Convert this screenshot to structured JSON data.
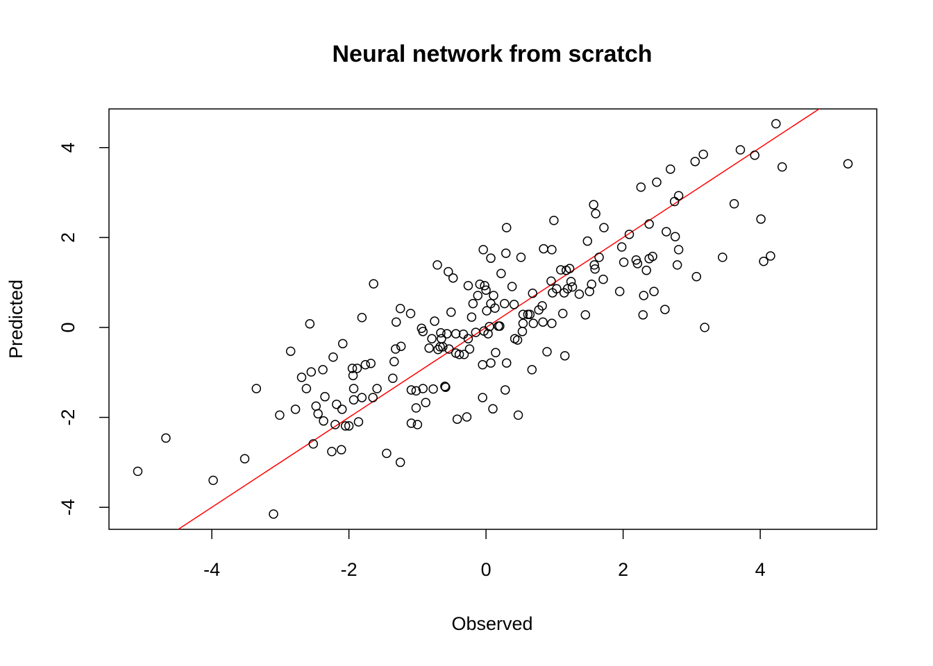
{
  "chart_data": {
    "type": "scatter",
    "title": "Neural network from scratch",
    "xlabel": "Observed",
    "ylabel": "Predicted",
    "marker_color": "#000000",
    "reference_line": {
      "intercept": 0,
      "slope": 1,
      "color": "#ff0000"
    },
    "xlim": [
      -5.5,
      5.7
    ],
    "ylim": [
      -4.49,
      4.86
    ],
    "xticks": [
      -4,
      -2,
      0,
      2,
      4
    ],
    "yticks": [
      -4,
      -2,
      0,
      2,
      4
    ],
    "x": [
      -5.08,
      -4.67,
      -3.98,
      -3.52,
      -3.35,
      -3.1,
      -3.01,
      -2.85,
      -2.78,
      -2.69,
      -2.62,
      -2.57,
      -2.55,
      -2.52,
      -2.48,
      -2.45,
      -2.38,
      -2.37,
      -2.35,
      -2.25,
      -2.23,
      -2.2,
      -2.18,
      -2.11,
      -2.1,
      -2.09,
      -2.05,
      -2.0,
      -1.95,
      -1.94,
      -1.93,
      -1.93,
      -1.88,
      -1.86,
      -1.81,
      -1.81,
      -1.76,
      -1.68,
      -1.65,
      -1.64,
      -1.59,
      -1.45,
      -1.36,
      -1.34,
      -1.32,
      -1.31,
      -1.25,
      -1.24,
      -1.25,
      -1.1,
      -1.09,
      -1.09,
      -1.02,
      -1.02,
      -1.0,
      -0.94,
      -0.92,
      -0.92,
      -0.88,
      -0.83,
      -0.79,
      -0.77,
      -0.75,
      -0.71,
      -0.7,
      -0.67,
      -0.66,
      -0.65,
      -0.63,
      -0.6,
      -0.59,
      -0.57,
      -0.55,
      -0.54,
      -0.51,
      -0.48,
      -0.44,
      -0.44,
      -0.42,
      -0.39,
      -0.33,
      -0.32,
      -0.28,
      -0.26,
      -0.26,
      -0.24,
      -0.21,
      -0.19,
      -0.15,
      -0.12,
      -0.09,
      -0.05,
      -0.04,
      -0.05,
      -0.03,
      -0.02,
      0.0,
      0.01,
      0.03,
      0.05,
      0.07,
      0.07,
      0.07,
      0.1,
      0.11,
      0.13,
      0.14,
      0.18,
      0.2,
      0.22,
      0.27,
      0.28,
      0.29,
      0.3,
      0.3,
      0.38,
      0.41,
      0.42,
      0.46,
      0.47,
      0.51,
      0.53,
      0.54,
      0.54,
      0.61,
      0.64,
      0.67,
      0.68,
      0.69,
      0.77,
      0.82,
      0.83,
      0.84,
      0.89,
      0.95,
      0.96,
      0.97,
      0.96,
      0.99,
      1.03,
      1.09,
      1.12,
      1.14,
      1.15,
      1.17,
      1.19,
      1.22,
      1.24,
      1.26,
      1.36,
      1.45,
      1.48,
      1.51,
      1.54,
      1.57,
      1.58,
      1.59,
      1.6,
      1.65,
      1.71,
      1.72,
      1.95,
      1.98,
      2.01,
      2.09,
      2.19,
      2.21,
      2.26,
      2.29,
      2.3,
      2.34,
      2.38,
      2.38,
      2.43,
      2.45,
      2.49,
      2.61,
      2.63,
      2.69,
      2.75,
      2.76,
      2.79,
      2.81,
      2.81,
      3.05,
      3.07,
      3.17,
      3.19,
      3.45,
      3.62,
      3.71,
      3.92,
      4.01,
      4.05,
      4.15,
      4.23,
      4.32,
      5.28
    ],
    "y": [
      -3.2,
      -2.46,
      -3.4,
      -2.92,
      -1.36,
      -4.15,
      -1.95,
      -0.53,
      -1.82,
      -1.11,
      -1.36,
      0.08,
      -0.99,
      -2.59,
      -1.75,
      -1.92,
      -0.94,
      -2.08,
      -1.54,
      -2.76,
      -0.66,
      -2.16,
      -1.71,
      -2.72,
      -1.82,
      -0.36,
      -2.19,
      -2.19,
      -0.91,
      -1.07,
      -1.36,
      -1.61,
      -0.91,
      -2.1,
      -1.56,
      0.22,
      -0.83,
      -0.8,
      -1.56,
      0.97,
      -1.36,
      -2.8,
      -1.13,
      -0.76,
      -0.48,
      0.12,
      -3.0,
      -0.42,
      0.42,
      0.31,
      -1.39,
      -2.13,
      -1.41,
      -1.79,
      -2.16,
      -0.02,
      -1.36,
      -0.09,
      -1.67,
      -0.46,
      -0.25,
      -1.37,
      0.14,
      1.39,
      -0.49,
      -0.43,
      -0.12,
      -0.25,
      -0.43,
      -1.31,
      -1.33,
      -0.14,
      1.24,
      -0.48,
      0.34,
      1.1,
      -0.14,
      -0.57,
      -2.04,
      -0.6,
      -0.15,
      -0.6,
      -1.99,
      0.93,
      -0.25,
      -0.48,
      0.23,
      0.53,
      -0.11,
      0.71,
      0.96,
      -0.83,
      1.73,
      -1.56,
      -0.08,
      0.93,
      0.83,
      0.37,
      -0.14,
      0.02,
      -0.79,
      1.54,
      0.53,
      -1.81,
      0.71,
      0.43,
      -0.56,
      0.03,
      0.03,
      1.2,
      0.53,
      -1.39,
      1.65,
      -0.79,
      2.22,
      0.91,
      0.51,
      -0.25,
      -0.28,
      -1.95,
      1.56,
      -0.09,
      0.09,
      0.29,
      0.29,
      0.29,
      -0.94,
      0.76,
      0.09,
      0.39,
      0.48,
      0.12,
      1.75,
      -0.54,
      1.03,
      1.73,
      0.77,
      0.09,
      2.38,
      0.86,
      1.28,
      0.31,
      0.77,
      -0.63,
      1.27,
      0.86,
      1.31,
      1.02,
      0.9,
      0.74,
      0.28,
      1.92,
      0.8,
      0.96,
      2.73,
      1.39,
      1.3,
      2.53,
      1.56,
      1.07,
      2.22,
      0.8,
      1.79,
      1.45,
      2.07,
      1.5,
      1.42,
      3.12,
      0.28,
      0.71,
      1.27,
      2.3,
      1.53,
      1.58,
      0.8,
      3.23,
      0.4,
      2.13,
      3.52,
      2.8,
      2.02,
      1.39,
      2.93,
      1.73,
      3.69,
      1.13,
      3.85,
      0.0,
      1.56,
      2.75,
      3.95,
      3.83,
      2.41,
      1.47,
      1.59,
      4.53,
      3.57,
      3.64
    ]
  }
}
